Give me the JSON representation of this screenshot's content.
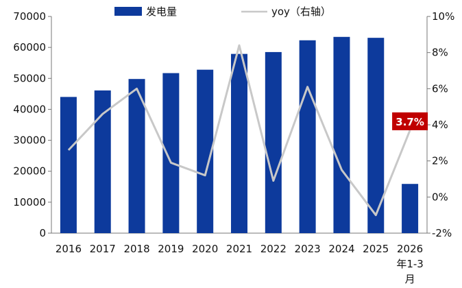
{
  "chart_data": {
    "type": "bar",
    "categories": [
      "2016",
      "2017",
      "2018",
      "2019",
      "2020",
      "2021",
      "2022",
      "2023",
      "2024",
      "2025",
      "2026年1-3月"
    ],
    "category_lines": [
      [
        "2016"
      ],
      [
        "2017"
      ],
      [
        "2018"
      ],
      [
        "2019"
      ],
      [
        "2020"
      ],
      [
        "2021"
      ],
      [
        "2022"
      ],
      [
        "2023"
      ],
      [
        "2024"
      ],
      [
        "2025"
      ],
      [
        "2026",
        "年1-3",
        "月"
      ]
    ],
    "series": [
      {
        "name": "发电量",
        "type": "bar",
        "axis": "left",
        "color": "#0d3a9c",
        "values": [
          44000,
          46100,
          49800,
          51700,
          52800,
          57900,
          58500,
          62300,
          63400,
          63100,
          15900
        ]
      },
      {
        "name": "yoy（右轴）",
        "type": "line",
        "axis": "right",
        "color": "#c8c8c8",
        "values": [
          2.6,
          4.6,
          6.0,
          1.9,
          1.2,
          8.4,
          0.9,
          6.1,
          1.5,
          -1.0,
          3.7
        ]
      }
    ],
    "left_axis": {
      "min": 0,
      "max": 70000,
      "step": 10000,
      "ticks": [
        "0",
        "10000",
        "20000",
        "30000",
        "40000",
        "50000",
        "60000",
        "70000"
      ]
    },
    "right_axis": {
      "min": -2,
      "max": 10,
      "step": 2,
      "ticks": [
        "-2%",
        "0%",
        "2%",
        "4%",
        "6%",
        "8%",
        "10%"
      ]
    },
    "callout": {
      "text": "3.7%",
      "series": "yoy（右轴）",
      "index": 10,
      "color": "#c00000"
    },
    "legend_position": "top",
    "grid": false
  }
}
